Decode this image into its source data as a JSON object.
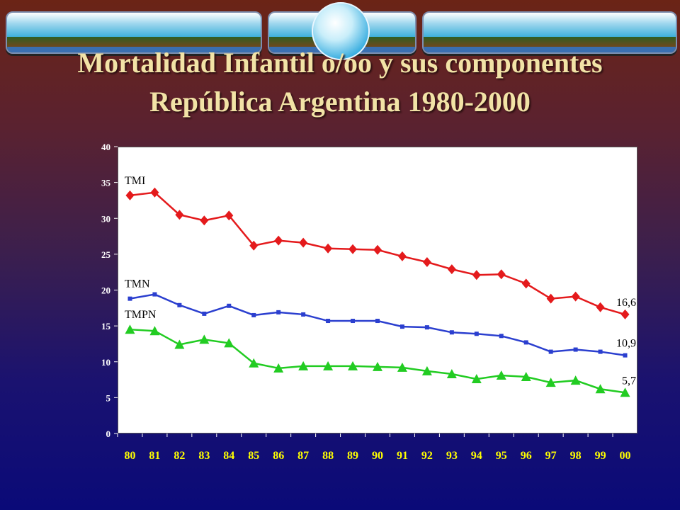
{
  "title": {
    "line1": "Mortalidad Infantil o/oo y sus componentes",
    "line2": "República Argentina 1980-2000"
  },
  "chart_data": {
    "type": "line",
    "categories": [
      "80",
      "81",
      "82",
      "83",
      "84",
      "85",
      "86",
      "87",
      "88",
      "89",
      "90",
      "91",
      "92",
      "93",
      "94",
      "95",
      "96",
      "97",
      "98",
      "99",
      "00"
    ],
    "ylim": [
      0,
      40
    ],
    "yticks": [
      "0",
      "5",
      "10",
      "15",
      "20",
      "25",
      "30",
      "35",
      "40"
    ],
    "grid": false,
    "series": [
      {
        "name": "TMI",
        "color": "#e41a1c",
        "marker": "diamond",
        "values": [
          33.2,
          33.6,
          30.5,
          29.7,
          30.4,
          26.2,
          26.9,
          26.6,
          25.8,
          25.7,
          25.6,
          24.7,
          23.9,
          22.9,
          22.1,
          22.2,
          20.9,
          18.8,
          19.1,
          17.6,
          16.6
        ],
        "end_label": "16,6"
      },
      {
        "name": "TMN",
        "color": "#2b3fcf",
        "marker": "square",
        "values": [
          18.8,
          19.4,
          17.9,
          16.7,
          17.8,
          16.5,
          16.9,
          16.6,
          15.7,
          15.7,
          15.7,
          14.9,
          14.8,
          14.1,
          13.9,
          13.6,
          12.7,
          11.4,
          11.7,
          11.4,
          10.9
        ],
        "end_label": "10,9"
      },
      {
        "name": "TMPN",
        "color": "#22cc22",
        "marker": "triangle",
        "values": [
          14.5,
          14.3,
          12.4,
          13.1,
          12.6,
          9.8,
          9.1,
          9.4,
          9.4,
          9.4,
          9.3,
          9.2,
          8.7,
          8.3,
          7.6,
          8.1,
          7.9,
          7.1,
          7.4,
          6.2,
          5.7
        ],
        "end_label": "5,7"
      }
    ]
  }
}
